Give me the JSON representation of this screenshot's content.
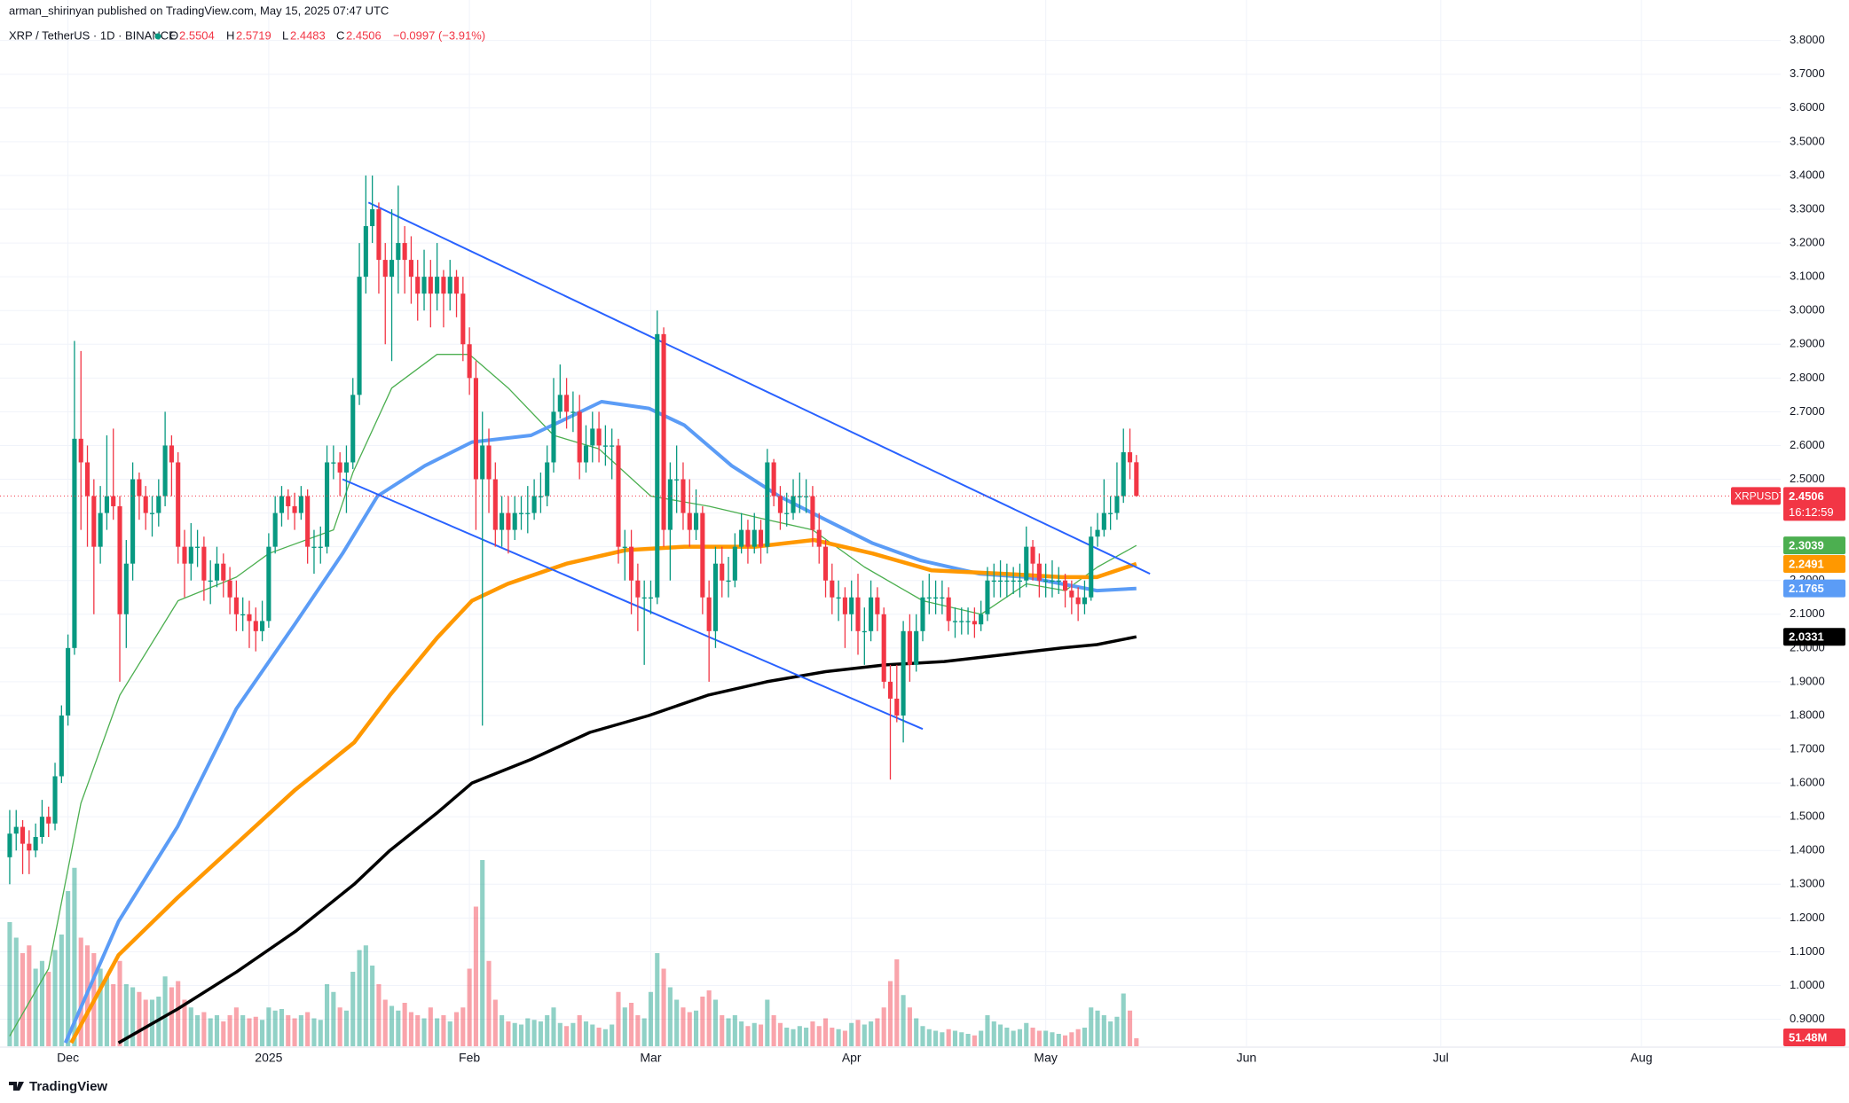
{
  "header": {
    "published": "arman_shirinyan published on TradingView.com, May 15, 2025 07:47 UTC",
    "symbol": "XRP / TetherUS · 1D · BINANCE",
    "o": "O",
    "h": "H",
    "l": "L",
    "c": "C",
    "change": "−0.0997 (−3.91%)"
  },
  "footer": {
    "brand": "TradingView"
  },
  "chart_data": {
    "type": "candlestick",
    "grid": true,
    "log_scale": false,
    "up_color": "#089981",
    "down_color": "#f23645",
    "xlim": [
      -1.5,
      273.5
    ],
    "xticks": [
      {
        "value": 9,
        "label": "Dec"
      },
      {
        "value": 40,
        "label": "2025"
      },
      {
        "value": 71,
        "label": "Feb"
      },
      {
        "value": 99,
        "label": "Mar"
      },
      {
        "value": 130,
        "label": "Apr"
      },
      {
        "value": 160,
        "label": "May"
      },
      {
        "value": 191,
        "label": "Jun"
      },
      {
        "value": 221,
        "label": "Jul"
      },
      {
        "value": 252,
        "label": "Aug"
      }
    ],
    "ylim": [
      0.82,
      3.92
    ],
    "yticks": [
      {
        "value": 0.9,
        "label": "0.9000"
      },
      {
        "value": 1.0,
        "label": "1.0000"
      },
      {
        "value": 1.1,
        "label": "1.1000"
      },
      {
        "value": 1.2,
        "label": "1.2000"
      },
      {
        "value": 1.3,
        "label": "1.3000"
      },
      {
        "value": 1.4,
        "label": "1.4000"
      },
      {
        "value": 1.5,
        "label": "1.5000"
      },
      {
        "value": 1.6,
        "label": "1.6000"
      },
      {
        "value": 1.7,
        "label": "1.7000"
      },
      {
        "value": 1.8,
        "label": "1.8000"
      },
      {
        "value": 1.9,
        "label": "1.9000"
      },
      {
        "value": 2.0,
        "label": "2.0000"
      },
      {
        "value": 2.1,
        "label": "2.1000"
      },
      {
        "value": 2.2,
        "label": "2.2000"
      },
      {
        "value": 2.3,
        "label": "2.3000"
      },
      {
        "value": 2.4,
        "label": "2.4000"
      },
      {
        "value": 2.5,
        "label": "2.5000"
      },
      {
        "value": 2.6,
        "label": "2.6000"
      },
      {
        "value": 2.7,
        "label": "2.7000"
      },
      {
        "value": 2.8,
        "label": "2.8000"
      },
      {
        "value": 2.9,
        "label": "2.9000"
      },
      {
        "value": 3.0,
        "label": "3.0000"
      },
      {
        "value": 3.1,
        "label": "3.1000"
      },
      {
        "value": 3.2,
        "label": "3.2000"
      },
      {
        "value": 3.3,
        "label": "3.3000"
      },
      {
        "value": 3.4,
        "label": "3.4000"
      },
      {
        "value": 3.5,
        "label": "3.5000"
      },
      {
        "value": 3.6,
        "label": "3.6000"
      },
      {
        "value": 3.7,
        "label": "3.7000"
      },
      {
        "value": 3.8,
        "label": "3.8000"
      }
    ],
    "open": [
      1.38,
      1.45,
      1.47,
      1.42,
      1.4,
      1.44,
      1.5,
      1.48,
      1.62,
      1.8,
      2.0,
      2.62,
      2.55,
      2.45,
      2.3,
      2.4,
      2.45,
      2.42,
      2.1,
      2.25,
      2.5,
      2.45,
      2.4,
      2.4,
      2.45,
      2.6,
      2.55,
      2.3,
      2.25,
      2.3,
      2.3,
      2.2,
      2.2,
      2.25,
      2.2,
      2.15,
      2.1,
      2.1,
      2.08,
      2.05,
      2.08,
      2.3,
      2.4,
      2.45,
      2.42,
      2.4,
      2.45,
      2.3,
      2.3,
      2.3,
      2.55,
      2.55,
      2.52,
      2.55,
      2.75,
      3.1,
      3.25,
      3.3,
      3.15,
      3.1,
      3.15,
      3.2,
      3.15,
      3.1,
      3.05,
      3.1,
      3.05,
      3.1,
      3.05,
      3.1,
      3.05,
      2.9,
      2.8,
      2.5,
      2.6,
      2.5,
      2.35,
      2.4,
      2.35,
      2.4,
      2.4,
      2.4,
      2.45,
      2.45,
      2.55,
      2.7,
      2.75,
      2.7,
      2.7,
      2.55,
      2.6,
      2.65,
      2.6,
      2.6,
      2.6,
      2.3,
      2.3,
      2.2,
      2.15,
      2.15,
      2.15,
      2.93,
      2.35,
      2.5,
      2.5,
      2.4,
      2.35,
      2.4,
      2.15,
      2.05,
      2.25,
      2.2,
      2.2,
      2.3,
      2.35,
      2.3,
      2.35,
      2.3,
      2.55,
      2.45,
      2.4,
      2.4,
      2.45,
      2.45,
      2.45,
      2.35,
      2.3,
      2.2,
      2.15,
      2.15,
      2.1,
      2.15,
      2.05,
      2.05,
      2.15,
      2.1,
      1.9,
      1.85,
      1.8,
      2.05,
      1.95,
      2.05,
      2.15,
      2.15,
      2.15,
      2.15,
      2.08,
      2.08,
      2.08,
      2.08,
      2.07,
      2.1,
      2.2,
      2.2,
      2.2,
      2.2,
      2.2,
      2.2,
      2.3,
      2.25,
      2.2,
      2.2,
      2.2,
      2.2,
      2.17,
      2.15,
      2.13,
      2.15,
      2.33,
      2.35,
      2.4,
      2.4,
      2.45,
      2.58,
      2.5504
    ],
    "high": [
      1.52,
      1.52,
      1.49,
      1.46,
      1.48,
      1.55,
      1.53,
      1.66,
      1.83,
      2.04,
      2.91,
      2.88,
      2.6,
      2.5,
      2.48,
      2.63,
      2.65,
      2.45,
      2.32,
      2.55,
      2.52,
      2.48,
      2.45,
      2.5,
      2.7,
      2.63,
      2.58,
      2.35,
      2.37,
      2.35,
      2.33,
      2.26,
      2.3,
      2.28,
      2.24,
      2.2,
      2.15,
      2.14,
      2.12,
      2.14,
      2.34,
      2.45,
      2.48,
      2.47,
      2.46,
      2.48,
      2.47,
      2.35,
      2.36,
      2.6,
      2.6,
      2.58,
      2.6,
      2.8,
      3.2,
      3.4,
      3.4,
      3.32,
      3.2,
      3.3,
      3.37,
      3.25,
      3.22,
      3.15,
      3.18,
      3.15,
      3.2,
      3.12,
      3.15,
      3.12,
      3.1,
      2.95,
      2.85,
      2.7,
      2.65,
      2.55,
      2.45,
      2.45,
      2.45,
      2.45,
      2.48,
      2.5,
      2.52,
      2.6,
      2.8,
      2.84,
      2.8,
      2.76,
      2.75,
      2.66,
      2.7,
      2.7,
      2.66,
      2.65,
      2.62,
      2.35,
      2.35,
      2.25,
      2.2,
      2.2,
      3.0,
      2.95,
      2.55,
      2.6,
      2.55,
      2.5,
      2.47,
      2.42,
      2.2,
      2.3,
      2.3,
      2.27,
      2.34,
      2.4,
      2.38,
      2.4,
      2.38,
      2.59,
      2.56,
      2.48,
      2.46,
      2.5,
      2.52,
      2.5,
      2.48,
      2.4,
      2.32,
      2.25,
      2.2,
      2.18,
      2.2,
      2.22,
      2.12,
      2.2,
      2.18,
      2.12,
      1.95,
      1.95,
      2.08,
      2.1,
      2.1,
      2.2,
      2.22,
      2.2,
      2.2,
      2.18,
      2.12,
      2.12,
      2.12,
      2.12,
      2.14,
      2.24,
      2.25,
      2.26,
      2.25,
      2.24,
      2.25,
      2.36,
      2.32,
      2.28,
      2.25,
      2.26,
      2.24,
      2.22,
      2.2,
      2.18,
      2.2,
      2.36,
      2.4,
      2.5,
      2.45,
      2.55,
      2.65,
      2.65,
      2.5719
    ],
    "low": [
      1.3,
      1.4,
      1.33,
      1.33,
      1.38,
      1.42,
      1.44,
      1.46,
      1.6,
      1.77,
      1.98,
      2.35,
      2.3,
      2.1,
      2.25,
      2.35,
      2.38,
      1.9,
      2.0,
      2.2,
      2.38,
      2.35,
      2.33,
      2.36,
      2.42,
      2.45,
      2.25,
      2.15,
      2.2,
      2.24,
      2.14,
      2.13,
      2.18,
      2.15,
      2.1,
      2.05,
      2.05,
      2.0,
      1.99,
      2.02,
      2.06,
      2.28,
      2.36,
      2.38,
      2.35,
      2.38,
      2.25,
      2.22,
      2.25,
      2.28,
      2.5,
      2.45,
      2.4,
      2.53,
      2.72,
      3.05,
      3.2,
      3.05,
      2.9,
      2.85,
      3.05,
      3.05,
      3.02,
      2.97,
      3.0,
      2.95,
      3.0,
      2.95,
      3.0,
      2.98,
      2.85,
      2.75,
      2.35,
      1.77,
      2.4,
      2.3,
      2.3,
      2.28,
      2.32,
      2.35,
      2.34,
      2.38,
      2.4,
      2.42,
      2.52,
      2.68,
      2.65,
      2.64,
      2.5,
      2.52,
      2.55,
      2.55,
      2.54,
      2.5,
      2.25,
      2.2,
      2.1,
      2.05,
      1.95,
      2.1,
      2.13,
      2.3,
      2.2,
      2.4,
      2.35,
      2.3,
      2.32,
      2.1,
      1.9,
      2.0,
      2.15,
      2.15,
      2.18,
      2.28,
      2.25,
      2.28,
      2.25,
      2.28,
      2.42,
      2.35,
      2.36,
      2.38,
      2.4,
      2.4,
      2.3,
      2.25,
      2.15,
      2.1,
      2.08,
      2.0,
      2.05,
      1.98,
      1.95,
      2.02,
      2.05,
      1.88,
      1.61,
      1.78,
      1.72,
      1.9,
      1.93,
      2.02,
      2.1,
      2.1,
      2.1,
      2.05,
      2.03,
      2.04,
      2.04,
      2.03,
      2.05,
      2.08,
      2.15,
      2.15,
      2.15,
      2.16,
      2.15,
      2.18,
      2.2,
      2.15,
      2.15,
      2.15,
      2.16,
      2.12,
      2.1,
      2.08,
      2.1,
      2.14,
      2.3,
      2.33,
      2.35,
      2.38,
      2.43,
      2.5,
      2.4483
    ],
    "close": [
      1.45,
      1.47,
      1.42,
      1.4,
      1.44,
      1.5,
      1.48,
      1.62,
      1.8,
      2.0,
      2.62,
      2.55,
      2.45,
      2.3,
      2.4,
      2.45,
      2.42,
      2.1,
      2.25,
      2.5,
      2.45,
      2.4,
      2.4,
      2.45,
      2.6,
      2.55,
      2.3,
      2.25,
      2.3,
      2.3,
      2.2,
      2.2,
      2.25,
      2.2,
      2.15,
      2.1,
      2.1,
      2.08,
      2.05,
      2.08,
      2.3,
      2.4,
      2.45,
      2.42,
      2.4,
      2.45,
      2.3,
      2.3,
      2.3,
      2.55,
      2.55,
      2.52,
      2.55,
      2.75,
      3.1,
      3.25,
      3.3,
      3.15,
      3.1,
      3.15,
      3.2,
      3.15,
      3.1,
      3.05,
      3.1,
      3.05,
      3.1,
      3.05,
      3.1,
      3.05,
      2.9,
      2.8,
      2.5,
      2.6,
      2.5,
      2.35,
      2.4,
      2.35,
      2.4,
      2.4,
      2.4,
      2.45,
      2.45,
      2.55,
      2.7,
      2.75,
      2.7,
      2.7,
      2.55,
      2.6,
      2.65,
      2.6,
      2.6,
      2.6,
      2.3,
      2.3,
      2.2,
      2.15,
      2.15,
      2.15,
      2.93,
      2.35,
      2.5,
      2.5,
      2.4,
      2.35,
      2.4,
      2.15,
      2.05,
      2.25,
      2.2,
      2.2,
      2.3,
      2.35,
      2.3,
      2.35,
      2.3,
      2.55,
      2.45,
      2.4,
      2.4,
      2.45,
      2.45,
      2.45,
      2.35,
      2.3,
      2.2,
      2.15,
      2.15,
      2.1,
      2.15,
      2.05,
      2.05,
      2.15,
      2.1,
      1.9,
      1.85,
      1.8,
      2.05,
      1.95,
      2.05,
      2.15,
      2.15,
      2.15,
      2.15,
      2.08,
      2.08,
      2.08,
      2.08,
      2.07,
      2.1,
      2.2,
      2.2,
      2.2,
      2.2,
      2.2,
      2.2,
      2.3,
      2.25,
      2.2,
      2.2,
      2.2,
      2.2,
      2.17,
      2.15,
      2.13,
      2.15,
      2.33,
      2.35,
      2.4,
      2.4,
      2.45,
      2.58,
      2.5503,
      2.4506
    ],
    "volume": [
      800,
      700,
      600,
      650,
      500,
      550,
      480,
      620,
      720,
      1000,
      1150,
      700,
      650,
      600,
      500,
      450,
      400,
      550,
      400,
      380,
      350,
      300,
      300,
      320,
      450,
      380,
      420,
      300,
      250,
      200,
      220,
      180,
      200,
      160,
      200,
      250,
      200,
      180,
      190,
      170,
      250,
      230,
      240,
      200,
      180,
      200,
      220,
      180,
      170,
      400,
      350,
      250,
      230,
      480,
      620,
      650,
      520,
      400,
      300,
      260,
      230,
      280,
      220,
      200,
      180,
      250,
      180,
      200,
      160,
      220,
      250,
      500,
      900,
      1200,
      550,
      300,
      200,
      160,
      150,
      140,
      180,
      170,
      160,
      200,
      250,
      150,
      130,
      150,
      200,
      160,
      140,
      120,
      110,
      140,
      350,
      250,
      280,
      200,
      180,
      350,
      600,
      500,
      380,
      300,
      250,
      220,
      230,
      320,
      360,
      300,
      200,
      180,
      200,
      160,
      130,
      150,
      140,
      300,
      200,
      150,
      120,
      110,
      130,
      120,
      160,
      130,
      180,
      120,
      110,
      100,
      150,
      170,
      140,
      160,
      180,
      250,
      420,
      560,
      330,
      250,
      180,
      130,
      110,
      100,
      90,
      110,
      100,
      90,
      80,
      70,
      100,
      200,
      160,
      140,
      120,
      100,
      110,
      150,
      120,
      100,
      100,
      90,
      80,
      70,
      90,
      110,
      120,
      250,
      230,
      200,
      160,
      190,
      340,
      230,
      51.48
    ],
    "volume_lim": [
      0,
      1200
    ],
    "volume_last_label": "51.48M",
    "last_price": {
      "symbol": "XRPUSDT",
      "countdown": "16:12:59",
      "color": "#f23645"
    },
    "lines": [
      {
        "color": "#4caf50",
        "x": [
          0,
          6,
          11,
          17,
          26,
          35,
          40,
          50,
          53,
          59,
          66,
          71,
          77,
          84,
          91,
          99,
          108,
          117,
          124,
          132,
          141,
          150,
          157,
          163,
          168,
          174
        ],
        "values": [
          0.85,
          1.05,
          1.54,
          1.86,
          2.14,
          2.21,
          2.28,
          2.35,
          2.52,
          2.77,
          2.87,
          2.87,
          2.77,
          2.63,
          2.59,
          2.45,
          2.42,
          2.38,
          2.35,
          2.24,
          2.14,
          2.1,
          2.19,
          2.17,
          2.24,
          2.3039
        ]
      },
      {
        "color": "#5b9cf6",
        "x": [
          8.6,
          16.8,
          25.9,
          35,
          44,
          51.4,
          56.8,
          64.1,
          71.4,
          80.5,
          86,
          91.4,
          98.7,
          104.2,
          111.5,
          118.8,
          126,
          133.3,
          140.6,
          149.7,
          157,
          162.5,
          167.9,
          174
        ],
        "values": [
          0.83,
          1.19,
          1.47,
          1.82,
          2.07,
          2.28,
          2.45,
          2.54,
          2.61,
          2.63,
          2.68,
          2.73,
          2.71,
          2.66,
          2.54,
          2.45,
          2.38,
          2.31,
          2.26,
          2.22,
          2.21,
          2.19,
          2.17,
          2.1765
        ]
      },
      {
        "color": "#ff9800",
        "x": [
          9.5,
          16.8,
          25.9,
          35,
          44.1,
          53.2,
          58.7,
          66,
          71.4,
          76.9,
          86,
          95.1,
          104.2,
          115.1,
          124.2,
          133.3,
          142.4,
          153.4,
          162.5,
          167.9,
          174
        ],
        "values": [
          0.83,
          1.09,
          1.26,
          1.42,
          1.58,
          1.72,
          1.86,
          2.03,
          2.14,
          2.19,
          2.25,
          2.29,
          2.3,
          2.3,
          2.32,
          2.28,
          2.23,
          2.22,
          2.21,
          2.21,
          2.2491
        ]
      },
      {
        "color": "#000000",
        "x": [
          16.8,
          25.9,
          35,
          44.1,
          53.2,
          58.7,
          65.9,
          71.4,
          80.5,
          89.6,
          98.7,
          107.8,
          116.9,
          126,
          135.2,
          144.3,
          153.4,
          162.5,
          167.9,
          174
        ],
        "values": [
          0.83,
          0.93,
          1.04,
          1.16,
          1.3,
          1.4,
          1.51,
          1.6,
          1.67,
          1.75,
          1.8,
          1.86,
          1.9,
          1.93,
          1.95,
          1.96,
          1.98,
          2.0,
          2.01,
          2.0331
        ]
      }
    ],
    "trendlines": [
      {
        "color": "#2962ff",
        "x": [
          55.4,
          176.1
        ],
        "values": [
          3.32,
          2.22
        ]
      },
      {
        "color": "#2962ff",
        "x": [
          51.4,
          141
        ],
        "values": [
          2.5,
          1.76
        ]
      }
    ]
  }
}
